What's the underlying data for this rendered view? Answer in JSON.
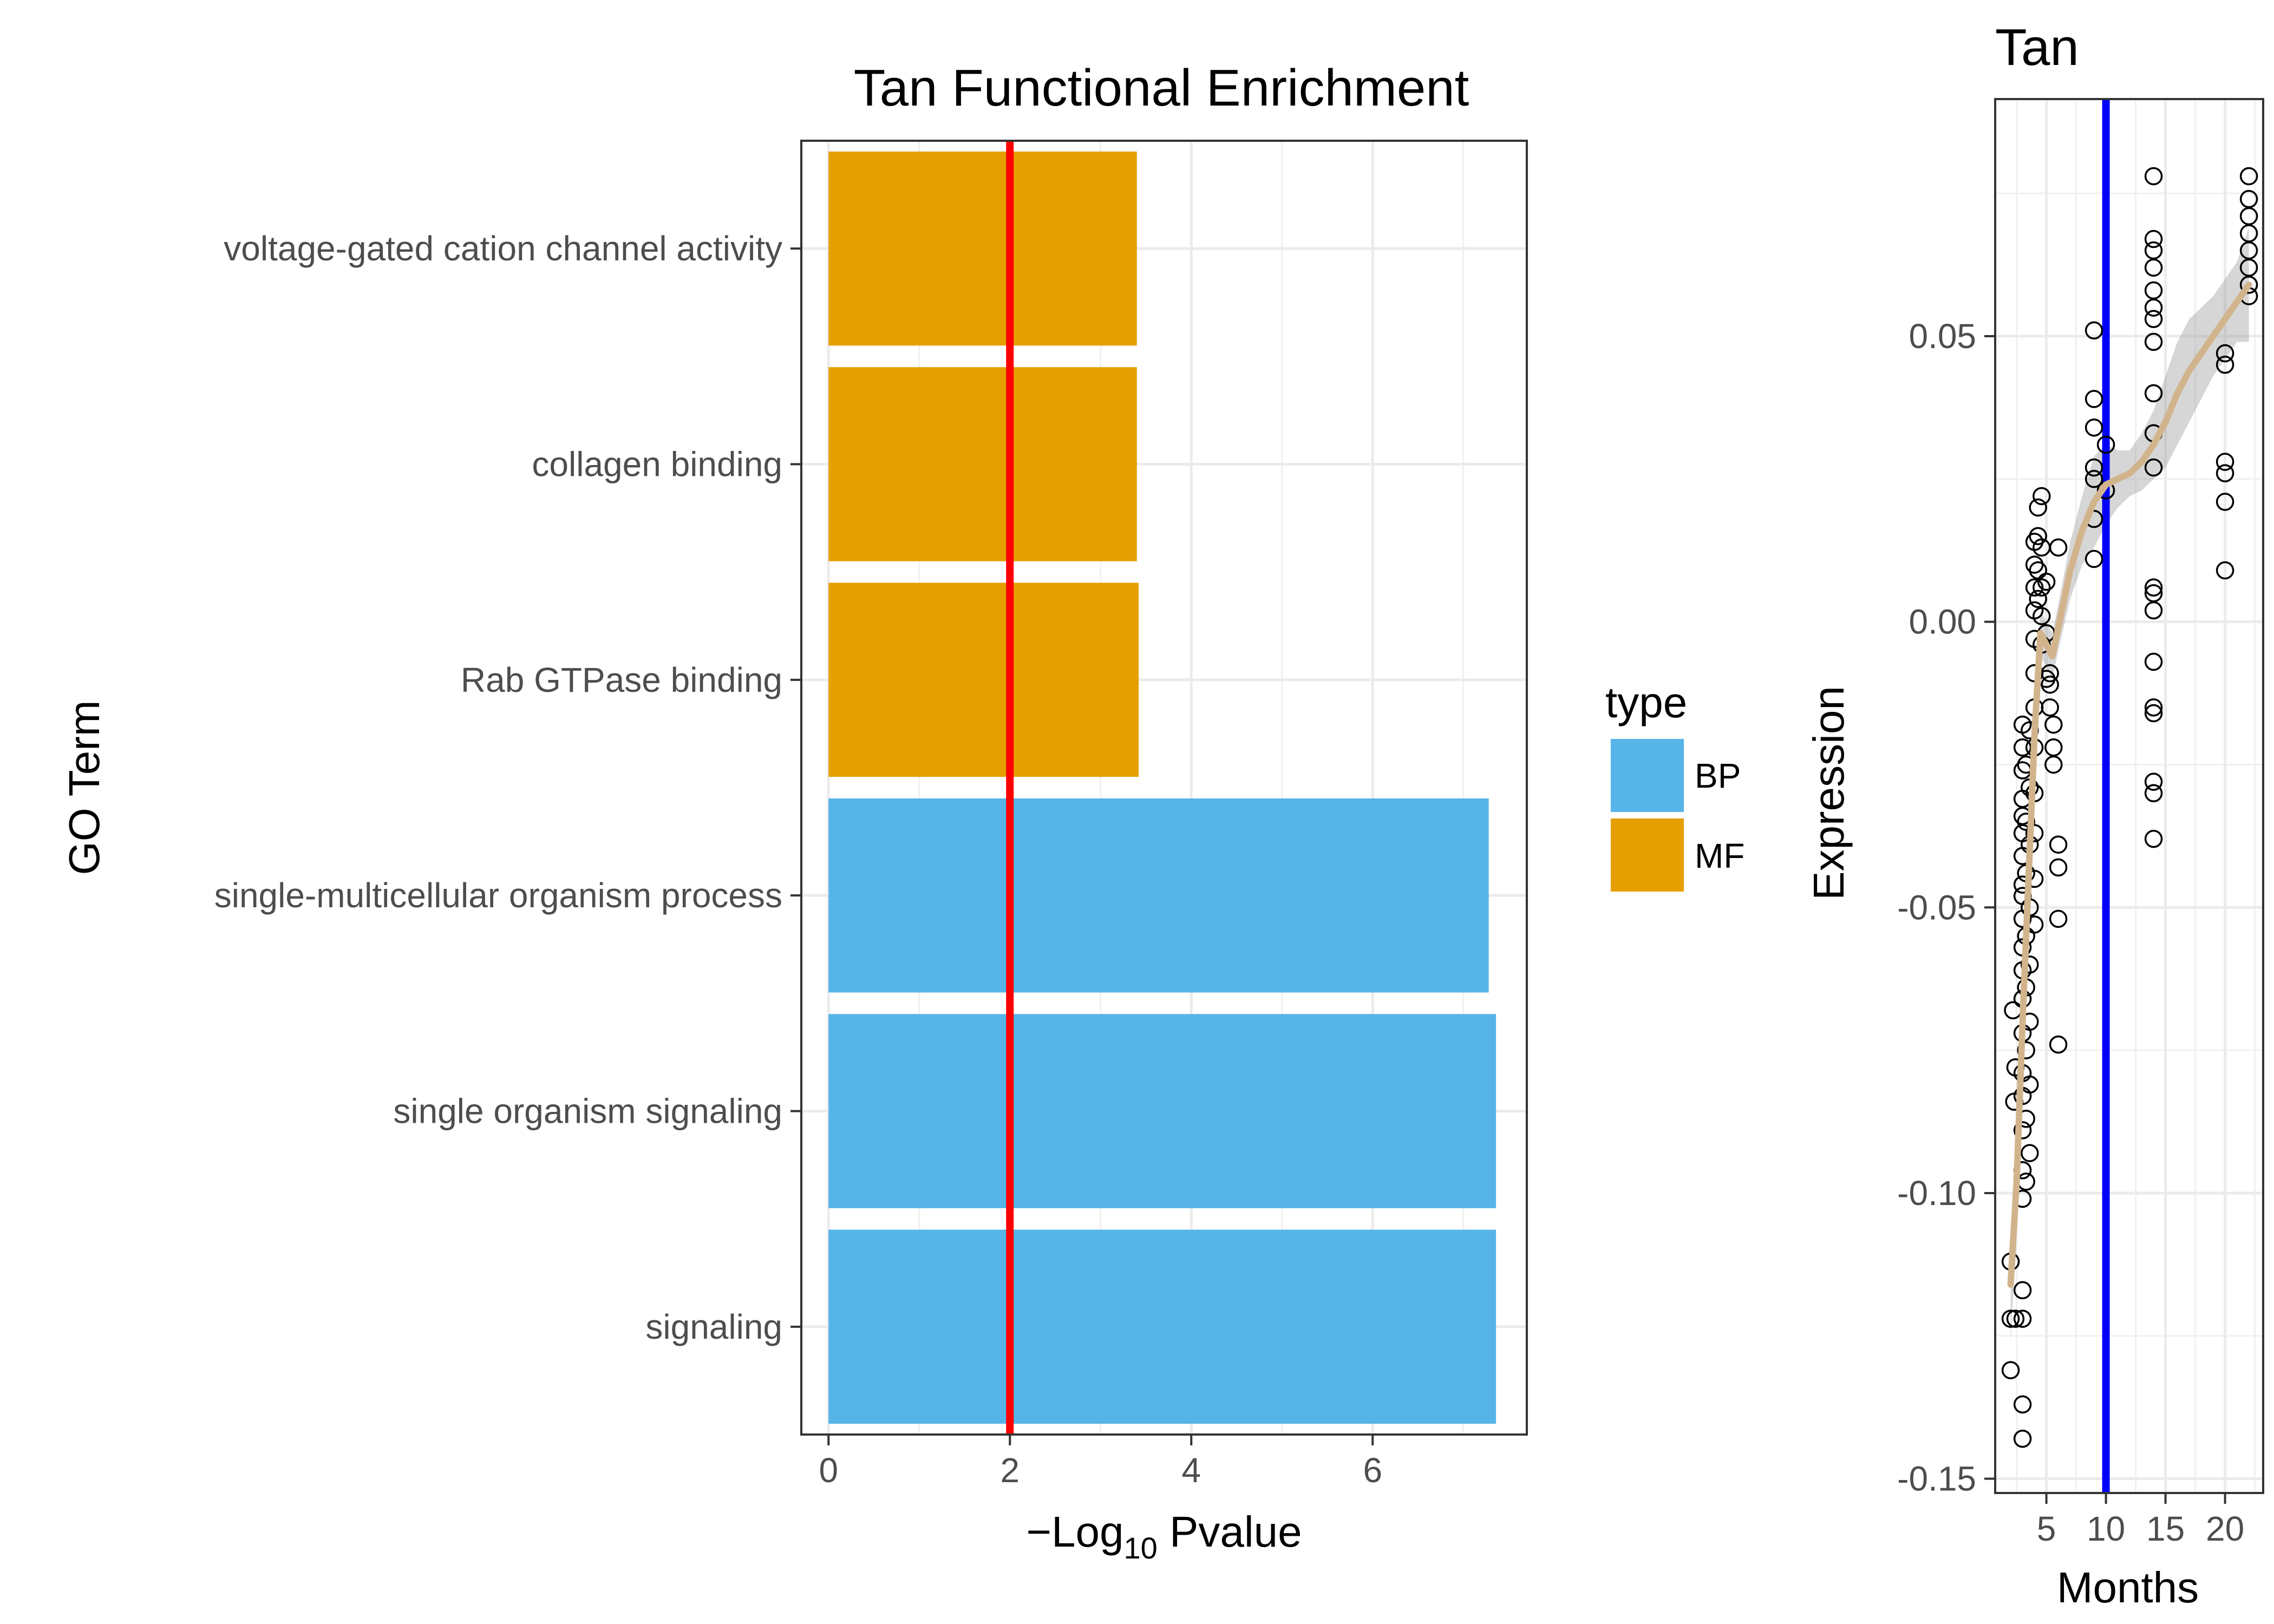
{
  "colors": {
    "BP": "#56B4E9",
    "MF": "#E69F00",
    "threshold": "#FF0000",
    "cutoff": "#0000FF",
    "smooth": "#D2B48C",
    "ribbon": "#999999"
  },
  "chart_data": [
    {
      "type": "bar",
      "orientation": "horizontal",
      "title": "Tan Functional Enrichment",
      "xlabel": "-Log10 Pvalue",
      "ylabel": "GO Term",
      "xlim": [
        -0.3,
        7.7
      ],
      "xticks": [
        0,
        2,
        4,
        6
      ],
      "grid": true,
      "legend": {
        "title": "type",
        "position": "right",
        "entries": [
          "BP",
          "MF"
        ]
      },
      "threshold_line": {
        "x": 2,
        "color": "#FF0000"
      },
      "categories": [
        "voltage-gated cation channel activity",
        "collagen binding",
        "Rab GTPase binding",
        "single-multicellular organism process",
        "single organism signaling",
        "signaling"
      ],
      "values": [
        3.4,
        3.4,
        3.42,
        7.28,
        7.36,
        7.36
      ],
      "types": [
        "MF",
        "MF",
        "MF",
        "BP",
        "BP",
        "BP"
      ]
    },
    {
      "type": "scatter",
      "title": "Tan",
      "xlabel": "Months",
      "ylabel": "Expression",
      "xlim": [
        0.7,
        23.2
      ],
      "ylim": [
        -0.1525,
        0.0915
      ],
      "xticks": [
        5,
        10,
        15,
        20
      ],
      "yticks": [
        -0.15,
        -0.1,
        -0.05,
        0.0,
        0.05
      ],
      "ytick_labels": [
        "-0.15",
        "-0.10",
        "-0.05",
        "0.00",
        "0.05"
      ],
      "grid": true,
      "vline": {
        "x": 10,
        "color": "#0000FF"
      },
      "points": [
        [
          2,
          -0.112
        ],
        [
          2,
          -0.131
        ],
        [
          2,
          -0.122
        ],
        [
          2.2,
          -0.068
        ],
        [
          2.3,
          -0.084
        ],
        [
          2.4,
          -0.078
        ],
        [
          2.4,
          -0.122
        ],
        [
          3,
          -0.137
        ],
        [
          3,
          -0.143
        ],
        [
          3,
          -0.117
        ],
        [
          3,
          -0.122
        ],
        [
          3,
          -0.101
        ],
        [
          3,
          -0.096
        ],
        [
          3,
          -0.089
        ],
        [
          3,
          -0.083
        ],
        [
          3,
          -0.079
        ],
        [
          3,
          -0.072
        ],
        [
          3,
          -0.066
        ],
        [
          3,
          -0.061
        ],
        [
          3,
          -0.057
        ],
        [
          3,
          -0.052
        ],
        [
          3,
          -0.048
        ],
        [
          3,
          -0.046
        ],
        [
          3,
          -0.041
        ],
        [
          3,
          -0.037
        ],
        [
          3,
          -0.034
        ],
        [
          3,
          -0.031
        ],
        [
          3,
          -0.026
        ],
        [
          3,
          -0.022
        ],
        [
          3,
          -0.018
        ],
        [
          3.3,
          -0.098
        ],
        [
          3.3,
          -0.087
        ],
        [
          3.3,
          -0.075
        ],
        [
          3.3,
          -0.064
        ],
        [
          3.3,
          -0.055
        ],
        [
          3.3,
          -0.044
        ],
        [
          3.3,
          -0.035
        ],
        [
          3.3,
          -0.025
        ],
        [
          3.6,
          -0.093
        ],
        [
          3.6,
          -0.081
        ],
        [
          3.6,
          -0.07
        ],
        [
          3.6,
          -0.06
        ],
        [
          3.6,
          -0.05
        ],
        [
          3.6,
          -0.039
        ],
        [
          3.6,
          -0.029
        ],
        [
          3.6,
          -0.019
        ],
        [
          4,
          -0.053
        ],
        [
          4,
          -0.045
        ],
        [
          4,
          -0.037
        ],
        [
          4,
          -0.03
        ],
        [
          4,
          -0.022
        ],
        [
          4,
          -0.015
        ],
        [
          4,
          -0.009
        ],
        [
          4,
          -0.003
        ],
        [
          4,
          0.002
        ],
        [
          4,
          0.006
        ],
        [
          4,
          0.01
        ],
        [
          4,
          0.014
        ],
        [
          4.3,
          0.004
        ],
        [
          4.3,
          0.009
        ],
        [
          4.3,
          0.015
        ],
        [
          4.3,
          0.02
        ],
        [
          4.6,
          -0.004
        ],
        [
          4.6,
          0.001
        ],
        [
          4.6,
          0.006
        ],
        [
          4.6,
          0.013
        ],
        [
          4.6,
          0.022
        ],
        [
          5,
          -0.01
        ],
        [
          5,
          -0.002
        ],
        [
          5,
          0.007
        ],
        [
          5.3,
          -0.011
        ],
        [
          5.3,
          -0.009
        ],
        [
          5.3,
          -0.015
        ],
        [
          5.6,
          -0.018
        ],
        [
          5.6,
          -0.022
        ],
        [
          5.6,
          -0.025
        ],
        [
          6,
          -0.039
        ],
        [
          6,
          -0.043
        ],
        [
          6,
          -0.052
        ],
        [
          6,
          -0.074
        ],
        [
          6,
          0.013
        ],
        [
          9,
          0.051
        ],
        [
          9,
          0.039
        ],
        [
          9,
          0.034
        ],
        [
          9,
          0.027
        ],
        [
          9,
          0.025
        ],
        [
          9,
          0.018
        ],
        [
          9,
          0.011
        ],
        [
          10,
          0.031
        ],
        [
          10,
          0.023
        ],
        [
          14,
          0.078
        ],
        [
          14,
          0.067
        ],
        [
          14,
          0.065
        ],
        [
          14,
          0.062
        ],
        [
          14,
          0.058
        ],
        [
          14,
          0.055
        ],
        [
          14,
          0.053
        ],
        [
          14,
          0.049
        ],
        [
          14,
          0.04
        ],
        [
          14,
          0.033
        ],
        [
          14,
          0.027
        ],
        [
          14,
          0.006
        ],
        [
          14,
          0.005
        ],
        [
          14,
          0.002
        ],
        [
          14,
          -0.007
        ],
        [
          14,
          -0.015
        ],
        [
          14,
          -0.016
        ],
        [
          14,
          -0.028
        ],
        [
          14,
          -0.03
        ],
        [
          14,
          -0.038
        ],
        [
          20,
          0.047
        ],
        [
          20,
          0.045
        ],
        [
          20,
          0.028
        ],
        [
          20,
          0.026
        ],
        [
          20,
          0.021
        ],
        [
          20,
          0.009
        ],
        [
          22,
          0.078
        ],
        [
          22,
          0.074
        ],
        [
          22,
          0.071
        ],
        [
          22,
          0.068
        ],
        [
          22,
          0.065
        ],
        [
          22,
          0.062
        ],
        [
          22,
          0.059
        ],
        [
          22,
          0.057
        ]
      ],
      "smooth_line": [
        [
          2,
          -0.116
        ],
        [
          2.5,
          -0.098
        ],
        [
          3,
          -0.07
        ],
        [
          3.5,
          -0.045
        ],
        [
          4,
          -0.02
        ],
        [
          4.5,
          -0.002
        ],
        [
          5,
          -0.004
        ],
        [
          5.5,
          -0.006
        ],
        [
          6,
          -0.001
        ],
        [
          7,
          0.009
        ],
        [
          8,
          0.016
        ],
        [
          9,
          0.021
        ],
        [
          10,
          0.024
        ],
        [
          11,
          0.025
        ],
        [
          12,
          0.026
        ],
        [
          13,
          0.028
        ],
        [
          14,
          0.031
        ],
        [
          15,
          0.035
        ],
        [
          16,
          0.04
        ],
        [
          17,
          0.044
        ],
        [
          18,
          0.047
        ],
        [
          19,
          0.05
        ],
        [
          20,
          0.053
        ],
        [
          21,
          0.056
        ],
        [
          22,
          0.059
        ]
      ],
      "ribbon_halfwidth": [
        0.01,
        0.008,
        0.006,
        0.005,
        0.004,
        0.004,
        0.004,
        0.004,
        0.004,
        0.005,
        0.006,
        0.008,
        0.007,
        0.005,
        0.004,
        0.005,
        0.006,
        0.008,
        0.009,
        0.009,
        0.008,
        0.007,
        0.007,
        0.007,
        0.01
      ]
    }
  ]
}
